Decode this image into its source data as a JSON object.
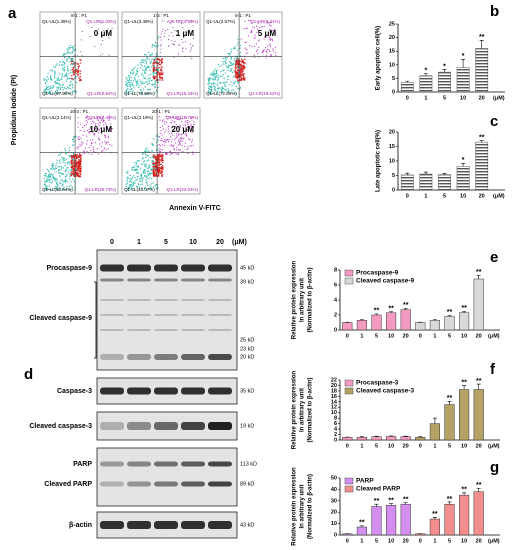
{
  "figure": {
    "flow": {
      "panel": "a",
      "ylabel": "Propidium Iodide (PI)",
      "xlabel": "Annexin V-FITC",
      "plots": [
        {
          "title": "8-1 : P1",
          "ul": "Q1-UL(1.38%)",
          "ur": "Q1-UR(1.03%)",
          "ll": "Q1-LL(97.95%)",
          "lr": "Q1-LR(0.64%)",
          "dose": "0 μM"
        },
        {
          "title": "1-3 : P1",
          "ul": "Q1-UL(3.48%)",
          "ur": "Q1-UR(4.59%)",
          "ll": "Q1-LL(76.59%)",
          "lr": "Q1-LR(15.34%)",
          "dose": "1 μM"
        },
        {
          "title": "5-1 : P1",
          "ul": "Q1-UL(2.57%)",
          "ur": "Q1-UR(5.31%)",
          "ll": "Q1-LL(72.89%)",
          "lr": "Q1-LR(19.22%)",
          "dose": "5 μM"
        },
        {
          "title": "10-3 : P1",
          "ul": "Q1-UL(2.14%)",
          "ur": "Q1-UR(7.49%)",
          "ll": "Q1-LL(63.64%)",
          "lr": "Q1-LR(26.73%)",
          "dose": "10 μM"
        },
        {
          "title": "20-1 : P1",
          "ul": "Q1-UL(2.19%)",
          "ur": "Q1-UR(19.79%)",
          "ll": "Q1-LL(45.07%)",
          "lr": "Q1-LR(33.04%)",
          "dose": "20 μM"
        }
      ]
    },
    "blot": {
      "panel": "d",
      "lanes": [
        "0",
        "1",
        "5",
        "10",
        "20"
      ],
      "unit": "(μM)",
      "rows": [
        "Procaspase-9",
        "Cleaved caspase-9",
        "Caspase-3",
        "Cleaved caspase-3",
        "PARP",
        "Cleaved PARP",
        "β-actin"
      ],
      "sizes": [
        "45 kD",
        "39 kD",
        "25 kD",
        "23 kD",
        "20 kD",
        "35 kD",
        "19 kD",
        "113 kD",
        "89 kD",
        "43 kD"
      ]
    }
  },
  "chart_data": [
    {
      "type": "bar",
      "panel": "b",
      "ylabel": [
        "Early apoptotic cell(%)"
      ],
      "categories": [
        "0",
        "1",
        "5",
        "10",
        "20"
      ],
      "x_unit": "(μM)",
      "values": [
        3.5,
        6,
        7.3,
        9,
        16
      ],
      "errors": [
        0.5,
        0.8,
        1,
        3,
        3
      ],
      "significance": [
        "",
        "*",
        "*",
        "*",
        "**"
      ],
      "color": "#555555",
      "hatch": true,
      "ylim": [
        0,
        25
      ],
      "yticks": [
        0,
        5,
        10,
        15,
        20,
        25
      ]
    },
    {
      "type": "bar",
      "panel": "c",
      "ylabel": [
        "Late apoptotic cell(%)"
      ],
      "categories": [
        "0",
        "1",
        "5",
        "10",
        "20"
      ],
      "x_unit": "(μM)",
      "values": [
        5.2,
        5.5,
        5.3,
        8.2,
        16.5
      ],
      "errors": [
        0.6,
        0.7,
        0.4,
        1,
        0.5
      ],
      "significance": [
        "",
        "",
        "",
        "*",
        "**"
      ],
      "color": "#555555",
      "hatch": true,
      "ylim": [
        0,
        20
      ],
      "yticks": [
        0,
        5,
        10,
        15,
        20
      ]
    },
    {
      "type": "bar",
      "panel": "e",
      "ylabel": [
        "Relative protein expression",
        "In arbitrary unit",
        "(Normalized to β-actin)"
      ],
      "categories": [
        "0",
        "1",
        "5",
        "10",
        "20"
      ],
      "x_unit": "(μM)",
      "series": [
        {
          "name": "Procaspase-9",
          "color": "#f29ac0",
          "values": [
            1,
            1.3,
            2,
            2.3,
            2.7
          ],
          "errors": [
            0.05,
            0.1,
            0.15,
            0.15,
            0.2
          ],
          "significance": [
            "",
            "",
            "**",
            "**",
            "**"
          ]
        },
        {
          "name": "Cleaved caspase-9",
          "color": "#d9d9d9",
          "values": [
            1,
            1.3,
            1.8,
            2.3,
            6.8
          ],
          "errors": [
            0.05,
            0.1,
            0.15,
            0.2,
            0.5
          ],
          "significance": [
            "",
            "",
            "**",
            "**",
            "**"
          ]
        }
      ],
      "ylim": [
        0,
        8
      ],
      "yticks": [
        0,
        2,
        4,
        6,
        8
      ]
    },
    {
      "type": "bar",
      "panel": "f",
      "ylabel": [
        "Relative protein expression",
        "In arbitrary unit",
        "(Normalized to β-actin)"
      ],
      "categories": [
        "0",
        "1",
        "5",
        "10",
        "20"
      ],
      "x_unit": "(μM)",
      "series": [
        {
          "name": "Procaspase-3",
          "color": "#f29ac0",
          "values": [
            1,
            1,
            1.2,
            1.3,
            1.2
          ],
          "errors": [
            0.1,
            0.2,
            0.2,
            0.2,
            0.2
          ],
          "significance": [
            "",
            "",
            "",
            "",
            ""
          ]
        },
        {
          "name": "Cleaved caspase-3",
          "color": "#b5a265",
          "values": [
            1,
            6,
            13,
            18.5,
            18.5
          ],
          "errors": [
            0.2,
            2,
            1.2,
            1.5,
            2
          ],
          "significance": [
            "",
            "",
            "**",
            "**",
            "**"
          ]
        }
      ],
      "ylim": [
        0,
        22
      ],
      "yticks": [
        0,
        2,
        4,
        6,
        8,
        10,
        12,
        14,
        16,
        18,
        20,
        22
      ]
    },
    {
      "type": "bar",
      "panel": "g",
      "ylabel": [
        "Relative protein expression",
        "In arbitrary unit",
        "(Normalized to β-actin)"
      ],
      "categories": [
        "0",
        "1",
        "5",
        "10",
        "20"
      ],
      "x_unit": "(μM)",
      "series": [
        {
          "name": "PARP",
          "color": "#d48ef0",
          "values": [
            1,
            7,
            25,
            26,
            27
          ],
          "errors": [
            0.2,
            1,
            2,
            1.5,
            1.5
          ],
          "significance": [
            "",
            "**",
            "**",
            "**",
            "**"
          ]
        },
        {
          "name": "Cleaved PARP",
          "color": "#f28e8e",
          "values": [
            1,
            14,
            27,
            35,
            38
          ],
          "errors": [
            0.2,
            1.5,
            2,
            2,
            3
          ],
          "significance": [
            "",
            "**",
            "**",
            "**",
            "**"
          ]
        }
      ],
      "ylim": [
        0,
        50
      ],
      "yticks": [
        0,
        10,
        20,
        30,
        40,
        50
      ]
    }
  ]
}
